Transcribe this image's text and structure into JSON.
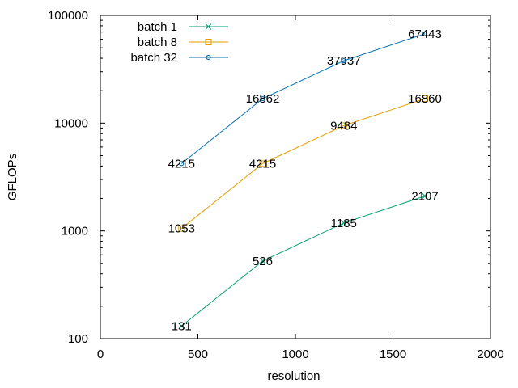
{
  "chart_data": {
    "type": "line",
    "title": "",
    "xlabel": "resolution",
    "ylabel": "GFLOPs",
    "xlim": [
      0,
      2000
    ],
    "ylim": [
      100,
      100000
    ],
    "yscale": "log",
    "xticks": [
      0,
      500,
      1000,
      1500,
      2000
    ],
    "yticks": [
      100,
      1000,
      10000,
      100000
    ],
    "xtick_labels": [
      "0",
      "500",
      "1000",
      "1500",
      "2000"
    ],
    "ytick_labels": [
      "100",
      "1000",
      "10000",
      "100000"
    ],
    "legend_position": "top-left",
    "x": [
      416,
      832,
      1248,
      1664
    ],
    "series": [
      {
        "name": "batch 1",
        "color": "#009e73",
        "marker": "cross",
        "values": [
          131,
          526,
          1185,
          2107
        ],
        "labels": [
          "131",
          "526",
          "1185",
          "2107"
        ]
      },
      {
        "name": "batch 8",
        "color": "#e69f00",
        "marker": "square",
        "values": [
          1053,
          4215,
          9484,
          16860
        ],
        "labels": [
          "1053",
          "4215",
          "9484",
          "16860"
        ]
      },
      {
        "name": "batch 32",
        "color": "#0072b2",
        "marker": "circle",
        "values": [
          4215,
          16862,
          37937,
          67443
        ],
        "labels": [
          "4215",
          "16862",
          "37937",
          "67443"
        ]
      }
    ]
  }
}
